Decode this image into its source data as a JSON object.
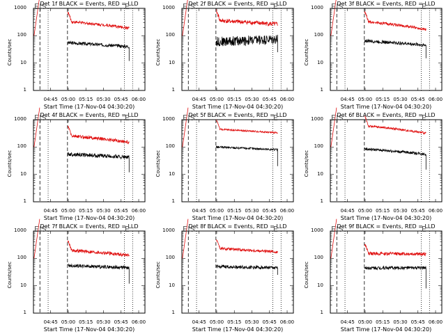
{
  "colors": {
    "events": "#000000",
    "lld": "#e01010",
    "axis": "#000000"
  },
  "shared": {
    "x_axis_label": "Start Time (17-Nov-04 04:30:20)",
    "y_axis_label": "Counts/sec",
    "y_ticks": [
      "1000",
      "100",
      "10",
      "1"
    ],
    "x_ticks": [
      "04:45",
      "05:00",
      "05:15",
      "05:30",
      "05:45",
      "06:00"
    ],
    "marker_start": "E|S",
    "marker_end": "E"
  },
  "chart_data": [
    {
      "title": "Det 1f BLACK = Events, RED = LLD",
      "type": "line",
      "xlabel": "Start Time (17-Nov-04 04:30:20)",
      "ylabel": "Counts/sec",
      "yscale": "log",
      "ylim": [
        1,
        1000
      ],
      "x_range_min": [
        0,
        95
      ],
      "series": [
        {
          "name": "Events",
          "color": "black",
          "start": 55,
          "end": 40,
          "noise": 0.06,
          "drop": 12
        },
        {
          "name": "LLD",
          "color": "red",
          "start": 330,
          "end": 190,
          "noise": 0.05,
          "rise_left": true
        }
      ]
    },
    {
      "title": "Det 2f BLACK = Events, RED = LLD",
      "type": "line",
      "xlabel": "Start Time (17-Nov-04 04:30:20)",
      "ylabel": "Counts/sec",
      "yscale": "log",
      "ylim": [
        1,
        1000
      ],
      "x_range_min": [
        0,
        95
      ],
      "series": [
        {
          "name": "Events",
          "color": "black",
          "start": 60,
          "end": 75,
          "noise": 0.18,
          "drop": 25
        },
        {
          "name": "LLD",
          "color": "red",
          "start": 360,
          "end": 260,
          "noise": 0.08,
          "rise_left": true
        }
      ]
    },
    {
      "title": "Det 3f BLACK = Events, RED = LLD",
      "type": "line",
      "xlabel": "Start Time (17-Nov-04 04:30:20)",
      "ylabel": "Counts/sec",
      "yscale": "log",
      "ylim": [
        1,
        1000
      ],
      "x_range_min": [
        0,
        95
      ],
      "series": [
        {
          "name": "Events",
          "color": "black",
          "start": 65,
          "end": 45,
          "noise": 0.06,
          "drop": 15
        },
        {
          "name": "LLD",
          "color": "red",
          "start": 330,
          "end": 170,
          "noise": 0.05,
          "rise_left": true
        }
      ]
    },
    {
      "title": "Det 4f BLACK = Events, RED = LLD",
      "type": "line",
      "xlabel": "Start Time (17-Nov-04 04:30:20)",
      "ylabel": "Counts/sec",
      "yscale": "log",
      "ylim": [
        1,
        1000
      ],
      "x_range_min": [
        0,
        95
      ],
      "series": [
        {
          "name": "Events",
          "color": "black",
          "start": 55,
          "end": 42,
          "noise": 0.07,
          "drop": 12
        },
        {
          "name": "LLD",
          "color": "red",
          "start": 260,
          "end": 150,
          "noise": 0.06,
          "rise_left": true
        }
      ]
    },
    {
      "title": "Det 5f BLACK = Events, RED = LLD",
      "type": "line",
      "xlabel": "Start Time (17-Nov-04 04:30:20)",
      "ylabel": "Counts/sec",
      "yscale": "log",
      "ylim": [
        1,
        1000
      ],
      "x_range_min": [
        0,
        95
      ],
      "series": [
        {
          "name": "Events",
          "color": "black",
          "start": 100,
          "end": 80,
          "noise": 0.04,
          "drop": 20
        },
        {
          "name": "LLD",
          "color": "red",
          "start": 450,
          "end": 330,
          "noise": 0.03,
          "rise_left": true
        }
      ]
    },
    {
      "title": "Det 6f BLACK = Events, RED = LLD",
      "type": "line",
      "xlabel": "Start Time (17-Nov-04 04:30:20)",
      "ylabel": "Counts/sec",
      "yscale": "log",
      "ylim": [
        1,
        1000
      ],
      "x_range_min": [
        0,
        95
      ],
      "series": [
        {
          "name": "Events",
          "color": "black",
          "start": 85,
          "end": 55,
          "noise": 0.05,
          "drop": 15
        },
        {
          "name": "LLD",
          "color": "red",
          "start": 600,
          "end": 320,
          "noise": 0.04,
          "rise_left": true
        }
      ]
    },
    {
      "title": "Det 7f BLACK = Events, RED = LLD",
      "type": "line",
      "xlabel": "Start Time (17-Nov-04 04:30:20)",
      "ylabel": "Counts/sec",
      "yscale": "log",
      "ylim": [
        1,
        1000
      ],
      "x_range_min": [
        0,
        95
      ],
      "series": [
        {
          "name": "Events",
          "color": "black",
          "start": 55,
          "end": 45,
          "noise": 0.06,
          "drop": 12
        },
        {
          "name": "LLD",
          "color": "red",
          "start": 200,
          "end": 130,
          "noise": 0.06,
          "rise_left": true
        }
      ]
    },
    {
      "title": "Det 8f BLACK = Events, RED = LLD",
      "type": "line",
      "xlabel": "Start Time (17-Nov-04 04:30:20)",
      "ylabel": "Counts/sec",
      "yscale": "log",
      "ylim": [
        1,
        1000
      ],
      "x_range_min": [
        0,
        95
      ],
      "series": [
        {
          "name": "Events",
          "color": "black",
          "start": 50,
          "end": 45,
          "noise": 0.06,
          "drop": 25
        },
        {
          "name": "LLD",
          "color": "red",
          "start": 230,
          "end": 170,
          "noise": 0.05,
          "rise_left": true
        }
      ]
    },
    {
      "title": "Det 9f BLACK = Events, RED = LLD",
      "type": "line",
      "xlabel": "Start Time (17-Nov-04 04:30:20)",
      "ylabel": "Counts/sec",
      "yscale": "log",
      "ylim": [
        1,
        1000
      ],
      "x_range_min": [
        0,
        95
      ],
      "series": [
        {
          "name": "Events",
          "color": "black",
          "start": 45,
          "end": 45,
          "noise": 0.06,
          "drop": 8
        },
        {
          "name": "LLD",
          "color": "red",
          "start": 150,
          "end": 145,
          "noise": 0.06,
          "rise_left": true
        }
      ]
    }
  ]
}
